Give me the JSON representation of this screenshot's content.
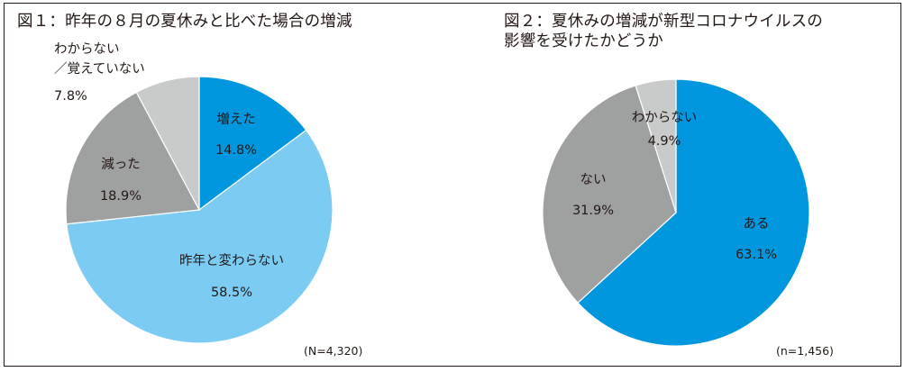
{
  "chart_data": [
    {
      "type": "pie",
      "title": "図１：昨年の８月の夏休みと比べた場合の増減",
      "n_label": "(N=4,320)",
      "start": "12 o'clock",
      "direction": "clockwise",
      "slices": [
        {
          "label": "増えた",
          "value": 14.8,
          "value_label": "14.8%",
          "color": "#0097de"
        },
        {
          "label": "昨年と変わらない",
          "value": 58.5,
          "value_label": "58.5%",
          "color": "#7ccbf3"
        },
        {
          "label": "減った",
          "value": 18.9,
          "value_label": "18.9%",
          "color": "#9fa0a0"
        },
        {
          "label_lines": [
            "わからない",
            "／覚えていない"
          ],
          "value": 7.8,
          "value_label": "7.8%",
          "color": "#c9caca"
        }
      ]
    },
    {
      "type": "pie",
      "title_lines": [
        "図２：夏休みの増減が新型コロナウイルスの",
        "影響を受けたかどうか"
      ],
      "n_label": "(n=1,456)",
      "start": "12 o'clock",
      "direction": "clockwise",
      "slices": [
        {
          "label": "ある",
          "value": 63.1,
          "value_label": "63.1%",
          "color": "#0097de"
        },
        {
          "label": "ない",
          "value": 31.9,
          "value_label": "31.9%",
          "color": "#9fa0a0"
        },
        {
          "label": "わからない",
          "value": 4.9,
          "value_label": "4.9%",
          "color": "#c9caca"
        }
      ]
    }
  ]
}
